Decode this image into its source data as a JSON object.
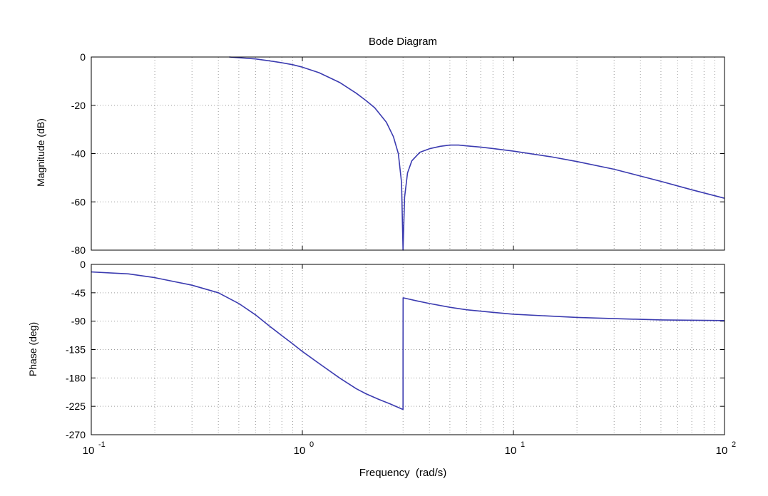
{
  "chart_data": {
    "type": "line",
    "title": "Bode Diagram",
    "xlabel": "Frequency  (rad/s)",
    "x_scale": "log",
    "xlim": [
      0.1,
      100
    ],
    "x_ticks": [
      {
        "value": 0.1,
        "base": "10",
        "exp": "-1"
      },
      {
        "value": 1,
        "base": "10",
        "exp": "0"
      },
      {
        "value": 10,
        "base": "10",
        "exp": "1"
      },
      {
        "value": 100,
        "base": "10",
        "exp": "2"
      }
    ],
    "grid": true,
    "line_color": "#3b3bb0",
    "panels": [
      {
        "name": "magnitude",
        "ylabel": "Magnitude (dB)",
        "ylim": [
          -80,
          0
        ],
        "y_ticks": [
          "0",
          "-20",
          "-40",
          "-60",
          "-80"
        ],
        "y_tick_values": [
          0,
          -20,
          -40,
          -60,
          -80
        ],
        "series": [
          {
            "x": [
              0.45,
              0.5,
              0.6,
              0.7,
              0.8,
              0.9,
              1.0,
              1.2,
              1.5,
              1.8,
              2.0,
              2.2,
              2.5,
              2.7,
              2.85,
              2.95,
              3.0,
              3.05,
              3.15,
              3.3,
              3.6,
              4.0,
              4.5,
              5.0,
              5.5,
              6.0,
              7.0,
              8.0,
              10,
              15,
              20,
              30,
              50,
              70,
              100
            ],
            "y": [
              0,
              -0.3,
              -0.8,
              -1.6,
              -2.4,
              -3.2,
              -4.2,
              -6.5,
              -10.5,
              -15,
              -18,
              -21,
              -27,
              -33,
              -40,
              -52,
              -80,
              -58,
              -48,
              -43,
              -39.5,
              -38,
              -37,
              -36.5,
              -36.5,
              -36.8,
              -37.3,
              -37.9,
              -39,
              -41.3,
              -43.3,
              -46.5,
              -51.5,
              -55,
              -58.5
            ]
          }
        ]
      },
      {
        "name": "phase",
        "ylabel": "Phase (deg)",
        "ylim": [
          -270,
          0
        ],
        "y_ticks": [
          "0",
          "-45",
          "-90",
          "-135",
          "-180",
          "-225",
          "-270"
        ],
        "y_tick_values": [
          0,
          -45,
          -90,
          -135,
          -180,
          -225,
          -270
        ],
        "series": [
          {
            "x": [
              0.1,
              0.15,
              0.2,
              0.3,
              0.4,
              0.5,
              0.6,
              0.7,
              0.8,
              0.9,
              1.0,
              1.2,
              1.5,
              1.8,
              2.0,
              2.3,
              2.6,
              2.999,
              3.0,
              3.001,
              3.5,
              4.0,
              5.0,
              6.0,
              8.0,
              10,
              15,
              20,
              30,
              50,
              100
            ],
            "y": [
              -12,
              -15,
              -21,
              -33,
              -45,
              -62,
              -80,
              -98,
              -113,
              -126,
              -138,
              -157,
              -180,
              -197,
              -205,
              -214,
              -221,
              -230,
              -140,
              -53,
              -58,
              -62,
              -68,
              -72,
              -76,
              -79,
              -82,
              -84,
              -86,
              -88,
              -89
            ]
          }
        ]
      }
    ]
  }
}
